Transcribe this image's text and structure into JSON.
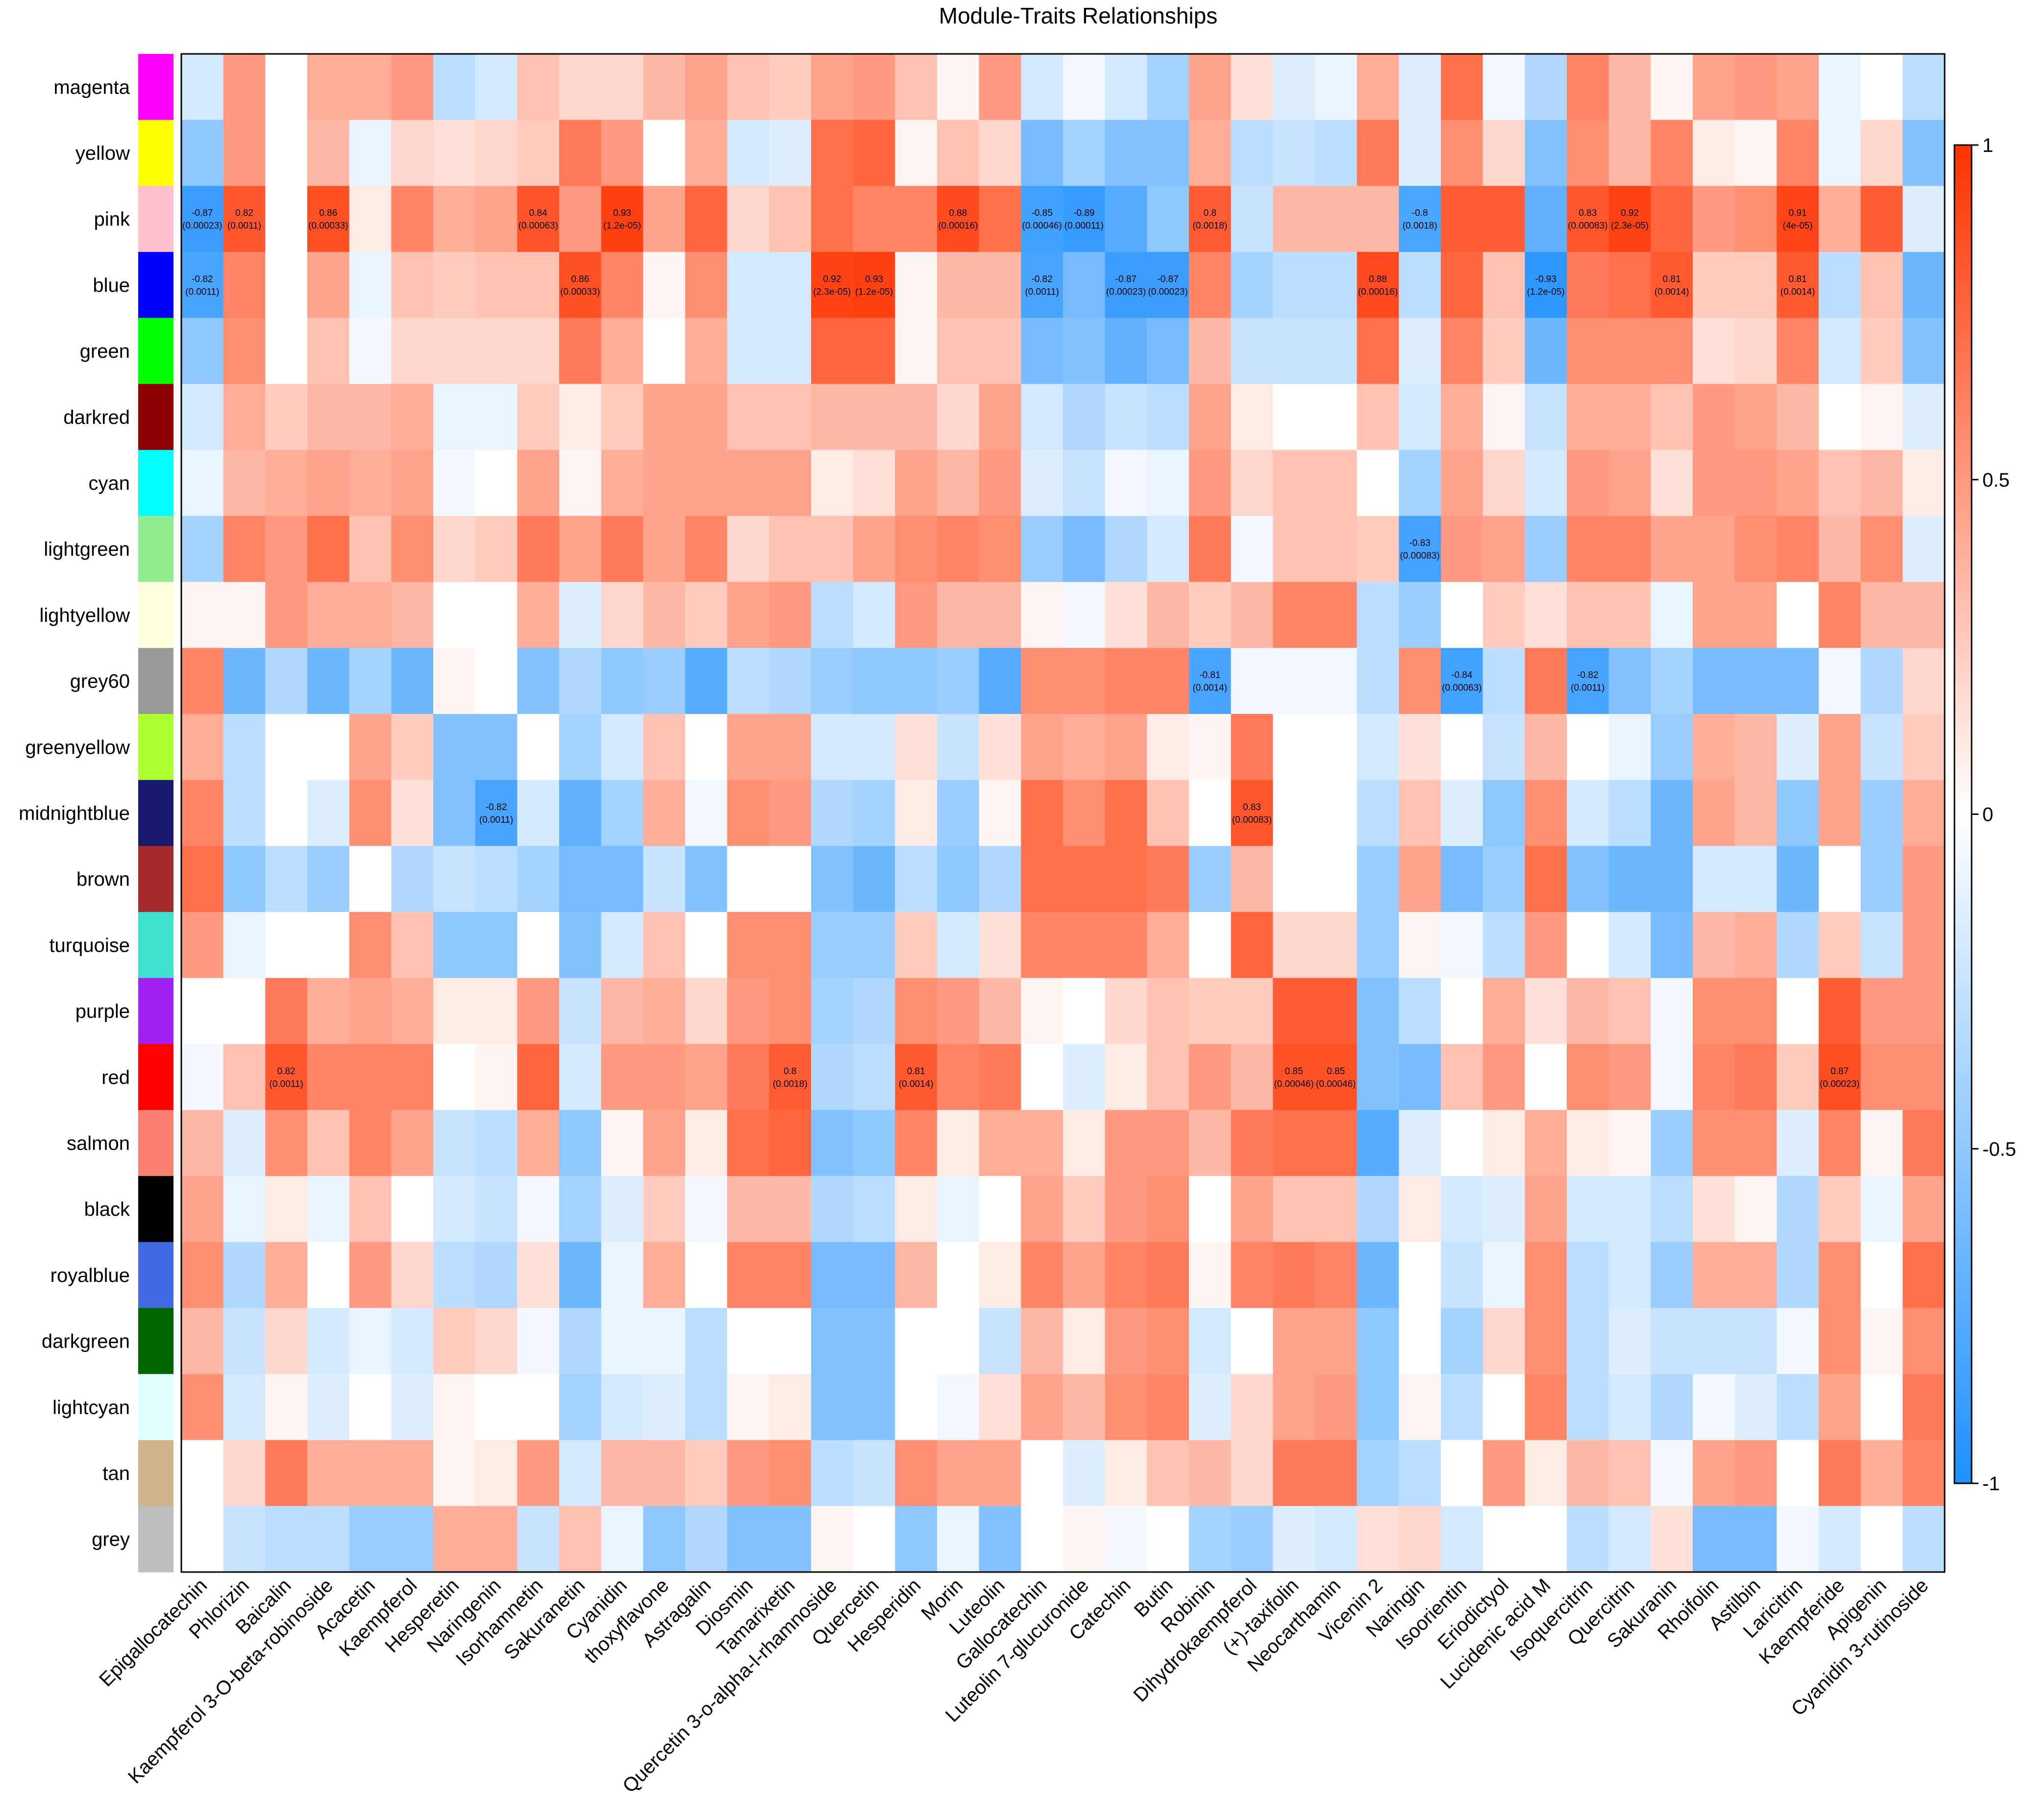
{
  "chart_data": {
    "type": "heatmap",
    "title": "Module-Traits Relationships",
    "rows": [
      "magenta",
      "yellow",
      "pink",
      "blue",
      "green",
      "darkred",
      "cyan",
      "lightgreen",
      "lightyellow",
      "grey60",
      "greenyellow",
      "midnightblue",
      "brown",
      "turquoise",
      "purple",
      "red",
      "salmon",
      "black",
      "royalblue",
      "darkgreen",
      "lightcyan",
      "tan",
      "grey"
    ],
    "row_colors": [
      "#FF00FF",
      "#FFFF00",
      "#FFC0CB",
      "#0000FF",
      "#00FF00",
      "#8B0000",
      "#00FFFF",
      "#90EE90",
      "#FFFFE0",
      "#999999",
      "#ADFF2F",
      "#191970",
      "#A52A2A",
      "#40E0D0",
      "#A020F0",
      "#FF0000",
      "#FA8072",
      "#000000",
      "#4169E1",
      "#006400",
      "#E0FFFF",
      "#D2B48C",
      "#BEBEBE"
    ],
    "columns": [
      "Epigallocatechin",
      "Phlorizin",
      "Baicalin",
      "Kaempferol 3-O-beta-robinoside",
      "Acacetin",
      "Kaempferol",
      "Hesperetin",
      "Naringenin",
      "Isorhamnetin",
      "Sakuranetin",
      "Cyanidin",
      "thoxyflavone",
      "Astragalin",
      "Diosmin",
      "Tamarixetin",
      "Quercetin 3-o-alpha-l-rhamnoside",
      "Quercetin",
      "Hesperidin",
      "Morin",
      "Luteolin",
      "Gallocatechin",
      "Luteolin 7-glucuronide",
      "Catechin",
      "Butin",
      "Robinin",
      "Dihydrokaempferol",
      "(+)-taxifolin",
      "Neocarthamin",
      "Vicenin 2",
      "Naringin",
      "Isoorientin",
      "Eriodictyol",
      "Lucidenic acid M",
      "Isoquercitrin",
      "Quercitrin",
      "Sakuranin",
      "Rhoifolin",
      "Astilbin",
      "Laricitrin",
      "Kaempferide",
      "Apigenin",
      "Cyanidin 3-rutinoside"
    ],
    "values": [
      [
        -0.2,
        0.5,
        0.0,
        0.4,
        0.4,
        0.5,
        -0.3,
        -0.2,
        0.3,
        0.2,
        0.2,
        0.35,
        0.45,
        0.3,
        0.25,
        0.45,
        0.5,
        0.3,
        0.05,
        0.5,
        -0.2,
        -0.05,
        -0.2,
        -0.4,
        0.45,
        0.15,
        -0.15,
        -0.1,
        0.4,
        -0.15,
        0.7,
        -0.05,
        -0.35,
        0.6,
        0.35,
        0.05,
        0.45,
        0.5,
        0.45,
        -0.1,
        0.0,
        -0.3
      ],
      [
        -0.5,
        0.5,
        0.0,
        0.35,
        -0.1,
        0.2,
        0.15,
        0.2,
        0.25,
        0.65,
        0.5,
        0.0,
        0.4,
        -0.2,
        -0.15,
        0.7,
        0.75,
        0.05,
        0.3,
        0.2,
        -0.6,
        -0.4,
        -0.55,
        -0.55,
        0.4,
        -0.3,
        -0.25,
        -0.3,
        0.65,
        -0.15,
        0.55,
        0.2,
        -0.55,
        0.55,
        0.35,
        0.6,
        0.1,
        0.05,
        0.6,
        -0.1,
        0.2,
        -0.55
      ],
      [
        -0.87,
        0.82,
        0.0,
        0.86,
        0.1,
        0.6,
        0.4,
        0.45,
        0.84,
        0.5,
        0.93,
        0.45,
        0.75,
        0.2,
        0.3,
        0.7,
        0.6,
        0.6,
        0.88,
        0.7,
        -0.85,
        -0.89,
        -0.75,
        -0.5,
        0.8,
        -0.25,
        0.35,
        0.35,
        0.35,
        -0.8,
        0.8,
        0.8,
        -0.7,
        0.83,
        0.92,
        0.75,
        0.5,
        0.55,
        0.91,
        0.4,
        0.8,
        -0.15
      ],
      [
        -0.82,
        0.6,
        0.0,
        0.45,
        -0.1,
        0.3,
        0.25,
        0.3,
        0.3,
        0.86,
        0.6,
        0.05,
        0.55,
        -0.2,
        -0.2,
        0.92,
        0.93,
        0.05,
        0.35,
        0.35,
        -0.82,
        -0.6,
        -0.87,
        -0.87,
        0.6,
        -0.4,
        -0.3,
        -0.3,
        0.88,
        -0.3,
        0.75,
        0.3,
        -0.93,
        0.65,
        0.7,
        0.81,
        0.25,
        0.25,
        0.81,
        -0.3,
        0.3,
        -0.65
      ],
      [
        -0.5,
        0.55,
        0.0,
        0.3,
        -0.05,
        0.2,
        0.2,
        0.2,
        0.2,
        0.65,
        0.4,
        0.0,
        0.4,
        -0.2,
        -0.2,
        0.75,
        0.75,
        0.05,
        0.3,
        0.3,
        -0.6,
        -0.55,
        -0.7,
        -0.6,
        0.35,
        -0.25,
        -0.25,
        -0.25,
        0.7,
        -0.15,
        0.6,
        0.25,
        -0.65,
        0.55,
        0.55,
        0.55,
        0.15,
        0.2,
        0.6,
        -0.2,
        0.25,
        -0.55
      ],
      [
        -0.2,
        0.4,
        0.25,
        0.35,
        0.35,
        0.4,
        -0.1,
        -0.1,
        0.25,
        0.1,
        0.25,
        0.45,
        0.45,
        0.3,
        0.3,
        0.35,
        0.35,
        0.35,
        0.2,
        0.45,
        -0.2,
        -0.35,
        -0.25,
        -0.3,
        0.45,
        0.1,
        0.0,
        0.0,
        0.3,
        -0.2,
        0.4,
        0.05,
        -0.25,
        0.4,
        0.4,
        0.3,
        0.5,
        0.45,
        0.35,
        0.0,
        0.05,
        -0.15
      ],
      [
        -0.1,
        0.35,
        0.4,
        0.45,
        0.4,
        0.45,
        -0.05,
        0.0,
        0.45,
        0.05,
        0.4,
        0.45,
        0.45,
        0.45,
        0.45,
        0.1,
        0.15,
        0.45,
        0.35,
        0.5,
        -0.15,
        -0.25,
        -0.05,
        -0.1,
        0.5,
        0.2,
        0.3,
        0.3,
        0.0,
        -0.4,
        0.45,
        0.2,
        -0.2,
        0.5,
        0.45,
        0.15,
        0.5,
        0.5,
        0.45,
        0.3,
        0.35,
        0.1
      ],
      [
        -0.4,
        0.6,
        0.5,
        0.7,
        0.3,
        0.55,
        0.2,
        0.25,
        0.65,
        0.45,
        0.65,
        0.45,
        0.6,
        0.2,
        0.3,
        0.3,
        0.45,
        0.55,
        0.6,
        0.55,
        -0.45,
        -0.6,
        -0.35,
        -0.2,
        0.65,
        -0.05,
        0.3,
        0.3,
        0.25,
        -0.83,
        0.5,
        0.45,
        -0.45,
        0.6,
        0.6,
        0.45,
        0.45,
        0.55,
        0.6,
        0.35,
        0.55,
        -0.15
      ],
      [
        0.05,
        0.05,
        0.5,
        0.4,
        0.4,
        0.35,
        0.0,
        0.0,
        0.4,
        -0.15,
        0.2,
        0.35,
        0.25,
        0.45,
        0.5,
        -0.3,
        -0.2,
        0.5,
        0.35,
        0.35,
        0.05,
        -0.05,
        0.15,
        0.35,
        0.25,
        0.35,
        0.6,
        0.6,
        -0.3,
        -0.45,
        0.0,
        0.25,
        0.15,
        0.3,
        0.3,
        -0.1,
        0.45,
        0.45,
        0.0,
        0.6,
        0.35,
        0.35
      ],
      [
        0.6,
        -0.65,
        -0.35,
        -0.65,
        -0.4,
        -0.65,
        0.05,
        0.0,
        -0.55,
        -0.35,
        -0.5,
        -0.45,
        -0.75,
        -0.3,
        -0.35,
        -0.45,
        -0.5,
        -0.5,
        -0.45,
        -0.75,
        0.55,
        0.55,
        0.6,
        0.6,
        -0.81,
        -0.05,
        -0.05,
        -0.05,
        -0.3,
        0.55,
        -0.84,
        -0.3,
        0.65,
        -0.82,
        -0.55,
        -0.4,
        -0.6,
        -0.6,
        -0.6,
        -0.05,
        -0.35,
        0.2
      ],
      [
        0.4,
        -0.3,
        0.0,
        0.0,
        0.45,
        0.25,
        -0.55,
        -0.55,
        0.0,
        -0.4,
        -0.2,
        0.3,
        0.0,
        0.45,
        0.45,
        -0.2,
        -0.2,
        0.15,
        -0.25,
        0.15,
        0.45,
        0.4,
        0.45,
        0.1,
        0.05,
        0.65,
        0.0,
        0.0,
        -0.2,
        0.15,
        0.0,
        -0.25,
        0.35,
        0.0,
        -0.1,
        -0.45,
        0.4,
        0.35,
        -0.15,
        0.45,
        -0.25,
        0.25
      ],
      [
        0.6,
        -0.3,
        0.0,
        -0.15,
        0.55,
        0.15,
        -0.55,
        -0.82,
        -0.2,
        -0.7,
        -0.4,
        0.4,
        -0.05,
        0.55,
        0.5,
        -0.35,
        -0.4,
        0.1,
        -0.45,
        0.05,
        0.7,
        0.55,
        0.7,
        0.3,
        0.0,
        0.83,
        0.0,
        0.0,
        -0.3,
        0.3,
        -0.15,
        -0.5,
        0.55,
        -0.2,
        -0.3,
        -0.65,
        0.45,
        0.35,
        -0.5,
        0.45,
        -0.45,
        0.4
      ],
      [
        0.7,
        -0.5,
        -0.3,
        -0.45,
        0.0,
        -0.35,
        -0.25,
        -0.3,
        -0.4,
        -0.6,
        -0.6,
        -0.25,
        -0.55,
        0.0,
        0.0,
        -0.55,
        -0.65,
        -0.3,
        -0.5,
        -0.35,
        0.7,
        0.7,
        0.7,
        0.65,
        -0.45,
        0.35,
        0.0,
        0.0,
        -0.45,
        0.45,
        -0.6,
        -0.45,
        0.7,
        -0.55,
        -0.65,
        -0.65,
        -0.2,
        -0.2,
        -0.65,
        0.0,
        -0.45,
        0.5
      ],
      [
        0.5,
        -0.1,
        0.0,
        0.0,
        0.55,
        0.3,
        -0.5,
        -0.5,
        0.0,
        -0.55,
        -0.2,
        0.3,
        0.0,
        0.55,
        0.55,
        -0.45,
        -0.45,
        0.25,
        -0.2,
        0.15,
        0.6,
        0.6,
        0.6,
        0.4,
        0.0,
        0.75,
        0.2,
        0.2,
        -0.45,
        0.05,
        -0.05,
        -0.3,
        0.5,
        0.0,
        -0.2,
        -0.6,
        0.35,
        0.4,
        -0.35,
        0.25,
        -0.25,
        0.5
      ],
      [
        0.0,
        0.0,
        0.65,
        0.4,
        0.45,
        0.4,
        0.1,
        0.1,
        0.5,
        -0.25,
        0.35,
        0.4,
        0.2,
        0.5,
        0.55,
        -0.4,
        -0.35,
        0.55,
        0.5,
        0.35,
        0.05,
        0.0,
        0.2,
        0.3,
        0.25,
        0.25,
        0.8,
        0.8,
        -0.55,
        -0.3,
        0.0,
        0.4,
        0.15,
        0.35,
        0.3,
        -0.05,
        0.55,
        0.55,
        0.0,
        0.8,
        0.5,
        0.5
      ],
      [
        -0.05,
        0.3,
        0.82,
        0.6,
        0.6,
        0.6,
        0.0,
        0.05,
        0.75,
        -0.2,
        0.5,
        0.5,
        0.45,
        0.65,
        0.8,
        -0.35,
        -0.3,
        0.81,
        0.6,
        0.65,
        0.0,
        -0.15,
        0.1,
        0.3,
        0.5,
        0.35,
        0.85,
        0.85,
        -0.55,
        -0.6,
        0.3,
        0.5,
        0.0,
        0.55,
        0.5,
        -0.05,
        0.6,
        0.65,
        0.25,
        0.87,
        0.55,
        0.55
      ],
      [
        0.35,
        -0.15,
        0.55,
        0.3,
        0.6,
        0.45,
        -0.25,
        -0.3,
        0.4,
        -0.5,
        0.05,
        0.45,
        0.1,
        0.7,
        0.75,
        -0.55,
        -0.5,
        0.6,
        0.1,
        0.4,
        0.4,
        0.1,
        0.5,
        0.5,
        0.35,
        0.65,
        0.7,
        0.7,
        -0.75,
        -0.15,
        0.0,
        0.1,
        0.4,
        0.1,
        0.05,
        -0.45,
        0.55,
        0.55,
        -0.15,
        0.6,
        0.05,
        0.65
      ],
      [
        0.45,
        -0.1,
        0.1,
        -0.1,
        0.3,
        0.0,
        -0.2,
        -0.25,
        -0.05,
        -0.4,
        -0.15,
        0.25,
        -0.05,
        0.35,
        0.35,
        -0.35,
        -0.3,
        0.1,
        -0.1,
        0.0,
        0.45,
        0.25,
        0.5,
        0.55,
        0.0,
        0.45,
        0.3,
        0.3,
        -0.35,
        0.1,
        -0.2,
        -0.15,
        0.45,
        -0.2,
        -0.2,
        -0.3,
        0.15,
        0.05,
        -0.35,
        0.25,
        -0.1,
        0.45
      ],
      [
        0.55,
        -0.35,
        0.4,
        0.0,
        0.5,
        0.2,
        -0.3,
        -0.35,
        0.15,
        -0.65,
        -0.1,
        0.4,
        0.0,
        0.6,
        0.6,
        -0.6,
        -0.6,
        0.35,
        0.0,
        0.1,
        0.6,
        0.45,
        0.6,
        0.65,
        0.05,
        0.6,
        0.65,
        0.6,
        -0.65,
        0.0,
        -0.25,
        -0.1,
        0.55,
        -0.3,
        -0.2,
        -0.45,
        0.4,
        0.4,
        -0.35,
        0.55,
        0.0,
        0.7
      ],
      [
        0.35,
        -0.25,
        0.2,
        -0.2,
        -0.1,
        -0.2,
        0.25,
        0.2,
        -0.05,
        -0.35,
        -0.1,
        -0.1,
        -0.3,
        0.0,
        0.0,
        -0.55,
        -0.55,
        0.0,
        0.0,
        -0.25,
        0.35,
        0.1,
        0.5,
        0.55,
        -0.2,
        0.0,
        0.45,
        0.45,
        -0.5,
        0.0,
        -0.4,
        0.2,
        0.55,
        -0.3,
        -0.15,
        -0.25,
        -0.25,
        -0.25,
        -0.05,
        0.55,
        0.05,
        0.55
      ],
      [
        0.55,
        -0.2,
        0.05,
        -0.15,
        0.0,
        -0.15,
        0.05,
        0.0,
        0.0,
        -0.4,
        -0.2,
        -0.15,
        -0.3,
        0.05,
        0.1,
        -0.55,
        -0.55,
        0.0,
        -0.05,
        0.15,
        0.45,
        0.35,
        0.55,
        0.6,
        -0.15,
        0.2,
        0.45,
        0.5,
        -0.5,
        0.05,
        -0.3,
        0.0,
        0.6,
        -0.3,
        -0.2,
        -0.35,
        -0.05,
        -0.15,
        -0.3,
        0.45,
        0.0,
        0.65
      ],
      [
        0.0,
        0.2,
        0.65,
        0.4,
        0.4,
        0.4,
        0.05,
        0.1,
        0.5,
        -0.2,
        0.35,
        0.35,
        0.25,
        0.5,
        0.55,
        -0.3,
        -0.25,
        0.55,
        0.45,
        0.45,
        0.0,
        -0.15,
        0.1,
        0.3,
        0.35,
        0.2,
        0.65,
        0.65,
        -0.4,
        -0.3,
        0.0,
        0.5,
        0.1,
        0.35,
        0.3,
        -0.05,
        0.45,
        0.5,
        0.0,
        0.65,
        0.4,
        0.6
      ],
      [
        0.0,
        -0.25,
        -0.3,
        -0.3,
        -0.45,
        -0.45,
        0.4,
        0.4,
        -0.25,
        0.3,
        -0.1,
        -0.5,
        -0.35,
        -0.55,
        -0.55,
        0.05,
        0.0,
        -0.5,
        -0.1,
        -0.55,
        0.0,
        0.05,
        -0.05,
        0.0,
        -0.4,
        -0.45,
        -0.15,
        -0.2,
        0.15,
        0.2,
        -0.2,
        0.0,
        0.0,
        -0.3,
        -0.2,
        0.15,
        -0.6,
        -0.6,
        -0.05,
        -0.2,
        0.0,
        -0.3
      ]
    ],
    "annotations": [
      {
        "row": 2,
        "col": 0,
        "r": "-0.87",
        "p": "(0.00023)"
      },
      {
        "row": 2,
        "col": 1,
        "r": "0.82",
        "p": "(0.0011)"
      },
      {
        "row": 2,
        "col": 3,
        "r": "0.86",
        "p": "(0.00033)"
      },
      {
        "row": 2,
        "col": 8,
        "r": "0.84",
        "p": "(0.00063)"
      },
      {
        "row": 2,
        "col": 10,
        "r": "0.93",
        "p": "(1.2e-05)"
      },
      {
        "row": 2,
        "col": 18,
        "r": "0.88",
        "p": "(0.00016)"
      },
      {
        "row": 2,
        "col": 20,
        "r": "-0.85",
        "p": "(0.00046)"
      },
      {
        "row": 2,
        "col": 21,
        "r": "-0.89",
        "p": "(0.00011)"
      },
      {
        "row": 2,
        "col": 24,
        "r": "0.8",
        "p": "(0.0018)"
      },
      {
        "row": 2,
        "col": 29,
        "r": "-0.8",
        "p": "(0.0018)"
      },
      {
        "row": 2,
        "col": 33,
        "r": "0.83",
        "p": "(0.00083)"
      },
      {
        "row": 2,
        "col": 34,
        "r": "0.92",
        "p": "(2.3e-05)"
      },
      {
        "row": 2,
        "col": 38,
        "r": "0.91",
        "p": "(4e-05)"
      },
      {
        "row": 3,
        "col": 0,
        "r": "-0.82",
        "p": "(0.0011)"
      },
      {
        "row": 3,
        "col": 9,
        "r": "0.86",
        "p": "(0.00033)"
      },
      {
        "row": 3,
        "col": 15,
        "r": "0.92",
        "p": "(2.3e-05)"
      },
      {
        "row": 3,
        "col": 16,
        "r": "0.93",
        "p": "(1.2e-05)"
      },
      {
        "row": 3,
        "col": 20,
        "r": "-0.82",
        "p": "(0.0011)"
      },
      {
        "row": 3,
        "col": 22,
        "r": "-0.87",
        "p": "(0.00023)"
      },
      {
        "row": 3,
        "col": 23,
        "r": "-0.87",
        "p": "(0.00023)"
      },
      {
        "row": 3,
        "col": 28,
        "r": "0.88",
        "p": "(0.00016)"
      },
      {
        "row": 3,
        "col": 32,
        "r": "-0.93",
        "p": "(1.2e-05)"
      },
      {
        "row": 3,
        "col": 35,
        "r": "0.81",
        "p": "(0.0014)"
      },
      {
        "row": 3,
        "col": 38,
        "r": "0.81",
        "p": "(0.0014)"
      },
      {
        "row": 7,
        "col": 29,
        "r": "-0.83",
        "p": "(0.00083)"
      },
      {
        "row": 9,
        "col": 24,
        "r": "-0.81",
        "p": "(0.0014)"
      },
      {
        "row": 9,
        "col": 30,
        "r": "-0.84",
        "p": "(0.00063)"
      },
      {
        "row": 9,
        "col": 33,
        "r": "-0.82",
        "p": "(0.0011)"
      },
      {
        "row": 11,
        "col": 7,
        "r": "-0.82",
        "p": "(0.0011)"
      },
      {
        "row": 11,
        "col": 25,
        "r": "0.83",
        "p": "(0.00083)"
      },
      {
        "row": 15,
        "col": 2,
        "r": "0.82",
        "p": "(0.0011)"
      },
      {
        "row": 15,
        "col": 14,
        "r": "0.8",
        "p": "(0.0018)"
      },
      {
        "row": 15,
        "col": 17,
        "r": "0.81",
        "p": "(0.0014)"
      },
      {
        "row": 15,
        "col": 26,
        "r": "0.85",
        "p": "(0.00046)"
      },
      {
        "row": 15,
        "col": 27,
        "r": "0.85",
        "p": "(0.00046)"
      },
      {
        "row": 15,
        "col": 39,
        "r": "0.87",
        "p": "(0.00023)"
      }
    ],
    "colorbar": {
      "range": [
        -1,
        1
      ],
      "ticks": [
        -1,
        -0.5,
        0,
        0.5,
        1
      ],
      "tick_labels": [
        "-1",
        "-0.5",
        "0",
        "0.5",
        "1"
      ],
      "low_color": "#1E90FF",
      "mid_color": "#FFFFFF",
      "high_color": "#FF3300"
    }
  }
}
